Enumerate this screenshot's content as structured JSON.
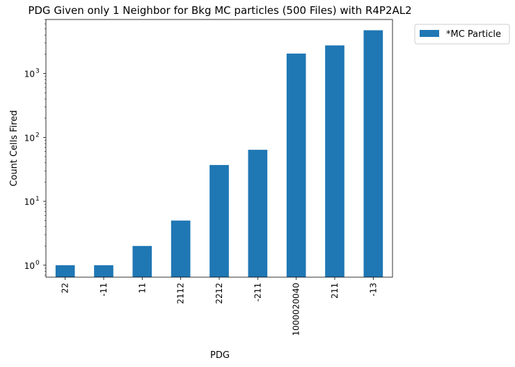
{
  "chart_data": {
    "type": "bar",
    "title": "PDG Given only 1 Neighbor for Bkg MC particles (500 Files) with R4P2AL2",
    "xlabel": "PDG",
    "ylabel": "Count Cells Fired",
    "yscale": "log",
    "ylim": [
      0.65,
      7000
    ],
    "yticks": [
      {
        "value": 1,
        "label": "10",
        "exp": "0"
      },
      {
        "value": 10,
        "label": "10",
        "exp": "1"
      },
      {
        "value": 100,
        "label": "10",
        "exp": "2"
      },
      {
        "value": 1000,
        "label": "10",
        "exp": "3"
      }
    ],
    "categories": [
      "22",
      "-11",
      "11",
      "2112",
      "2212",
      "-211",
      "1000020040",
      "211",
      "-13"
    ],
    "series": [
      {
        "name": "*MC Particle",
        "values": [
          1,
          1,
          2,
          5,
          37,
          64,
          2050,
          2750,
          4750
        ],
        "color": "#1f77b4"
      }
    ],
    "legend": {
      "position": "outside-top-right"
    },
    "grid": false
  }
}
